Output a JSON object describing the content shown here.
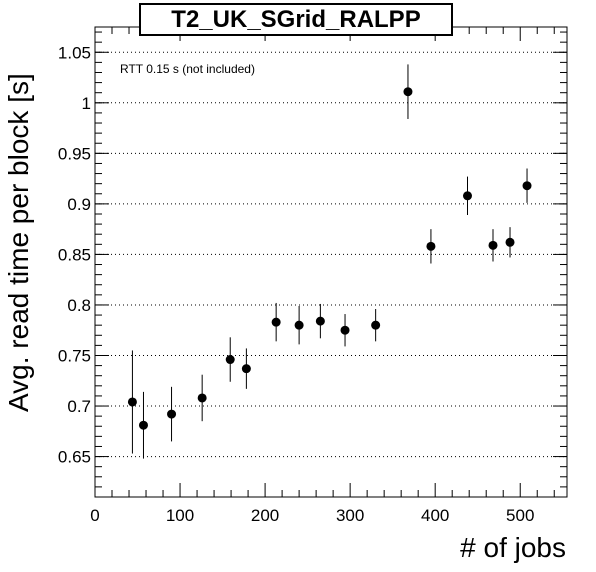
{
  "chart_data": {
    "type": "scatter",
    "title": "T2_UK_SGrid_RALPP",
    "xlabel": "# of jobs",
    "ylabel": "Avg. read time per block [s]",
    "annotation": "RTT 0.15 s (not included)",
    "xlim": [
      0,
      555
    ],
    "ylim": [
      0.61,
      1.075
    ],
    "x_ticks": [
      0,
      100,
      200,
      300,
      400,
      500
    ],
    "y_ticks": [
      0.65,
      0.7,
      0.75,
      0.8,
      0.85,
      0.9,
      0.95,
      1,
      1.05
    ],
    "x_tick_labels": [
      "0",
      "100",
      "200",
      "300",
      "400",
      "500"
    ],
    "y_tick_labels": [
      "0.65",
      "0.7",
      "0.75",
      "0.8",
      "0.85",
      "0.9",
      "0.95",
      "1",
      "1.05"
    ],
    "grid": "horizontal dotted",
    "error_bars": true,
    "series": [
      {
        "points": [
          {
            "x": 44,
            "y": 0.704,
            "err": 0.051
          },
          {
            "x": 57,
            "y": 0.681,
            "err": 0.033
          },
          {
            "x": 90,
            "y": 0.692,
            "err": 0.027
          },
          {
            "x": 126,
            "y": 0.708,
            "err": 0.023
          },
          {
            "x": 159,
            "y": 0.746,
            "err": 0.022
          },
          {
            "x": 178,
            "y": 0.737,
            "err": 0.02
          },
          {
            "x": 213,
            "y": 0.783,
            "err": 0.019
          },
          {
            "x": 240,
            "y": 0.78,
            "err": 0.019
          },
          {
            "x": 265,
            "y": 0.784,
            "err": 0.017
          },
          {
            "x": 294,
            "y": 0.775,
            "err": 0.016
          },
          {
            "x": 330,
            "y": 0.78,
            "err": 0.016
          },
          {
            "x": 368,
            "y": 1.011,
            "err": 0.027
          },
          {
            "x": 395,
            "y": 0.858,
            "err": 0.017
          },
          {
            "x": 438,
            "y": 0.908,
            "err": 0.019
          },
          {
            "x": 468,
            "y": 0.859,
            "err": 0.016
          },
          {
            "x": 488,
            "y": 0.862,
            "err": 0.015
          },
          {
            "x": 508,
            "y": 0.918,
            "err": 0.017
          }
        ]
      }
    ]
  }
}
